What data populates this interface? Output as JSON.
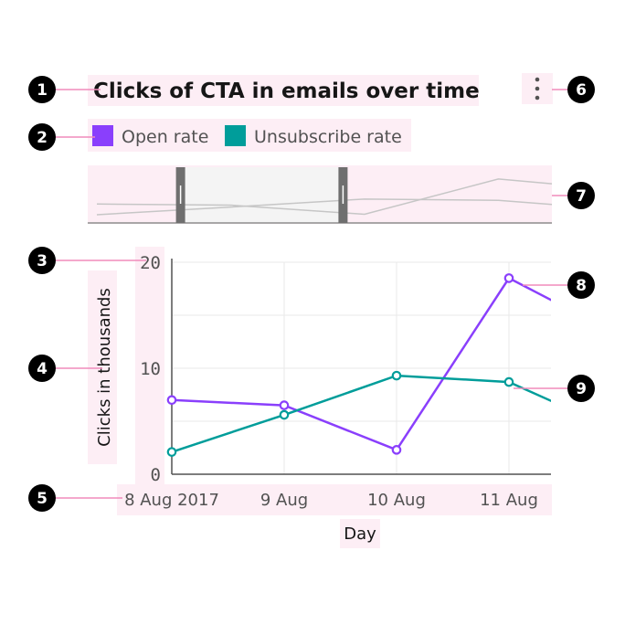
{
  "badges": [
    "1",
    "2",
    "3",
    "4",
    "5",
    "6",
    "7",
    "8",
    "9"
  ],
  "colors": {
    "open_rate": "#8a3ffc",
    "unsubscribe_rate": "#009d9a",
    "annotation_highlight": "#fdeef5",
    "leader_line": "#f08cbb"
  },
  "overflow_menu": {
    "icon": "overflow-menu-vertical-icon"
  },
  "chart_data": {
    "type": "line",
    "title": "Clicks of CTA in emails over time",
    "xlabel": "Day",
    "ylabel": "Clicks in thousands",
    "categories": [
      "8 Aug 2017",
      "9 Aug",
      "10 Aug",
      "11 Aug"
    ],
    "x": [
      0,
      1,
      2,
      3,
      3.4
    ],
    "series": [
      {
        "name": "Open rate",
        "values": [
          7,
          6.5,
          2.3,
          18.5,
          16.3
        ]
      },
      {
        "name": "Unsubscribe rate",
        "values": [
          2.1,
          5.6,
          9.3,
          8.7,
          6.8
        ]
      }
    ],
    "y_ticks": [
      "0",
      "10",
      "20"
    ],
    "ylim": [
      0,
      20
    ],
    "grid": true,
    "legend_position": "top-left",
    "zoom_bar": {
      "selection": [
        0.2,
        0.55
      ]
    }
  }
}
